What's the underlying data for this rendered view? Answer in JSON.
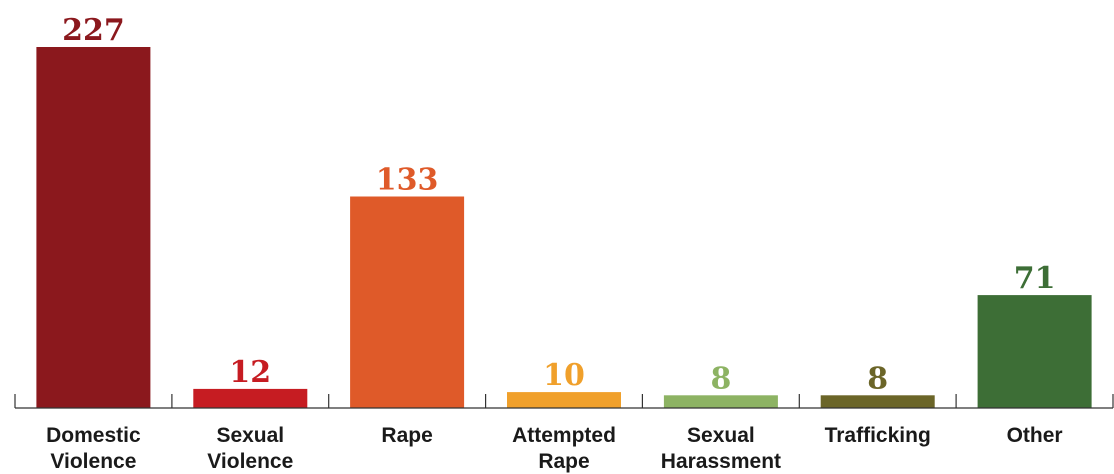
{
  "chart_data": {
    "type": "bar",
    "categories": [
      [
        "Domestic",
        "Violence"
      ],
      [
        "Sexual",
        "Violence"
      ],
      [
        "Rape"
      ],
      [
        "Attempted",
        "Rape"
      ],
      [
        "Sexual",
        "Harassment"
      ],
      [
        "Trafficking"
      ],
      [
        "Other"
      ]
    ],
    "values": [
      227,
      12,
      133,
      10,
      8,
      8,
      71
    ],
    "colors": [
      "#8b181d",
      "#c61c22",
      "#df5a29",
      "#f0a02b",
      "#8db363",
      "#6b6528",
      "#3d6e36"
    ],
    "title": "",
    "xlabel": "",
    "ylabel": "",
    "ylim": [
      0,
      227
    ],
    "grid": false,
    "legend": "none"
  }
}
